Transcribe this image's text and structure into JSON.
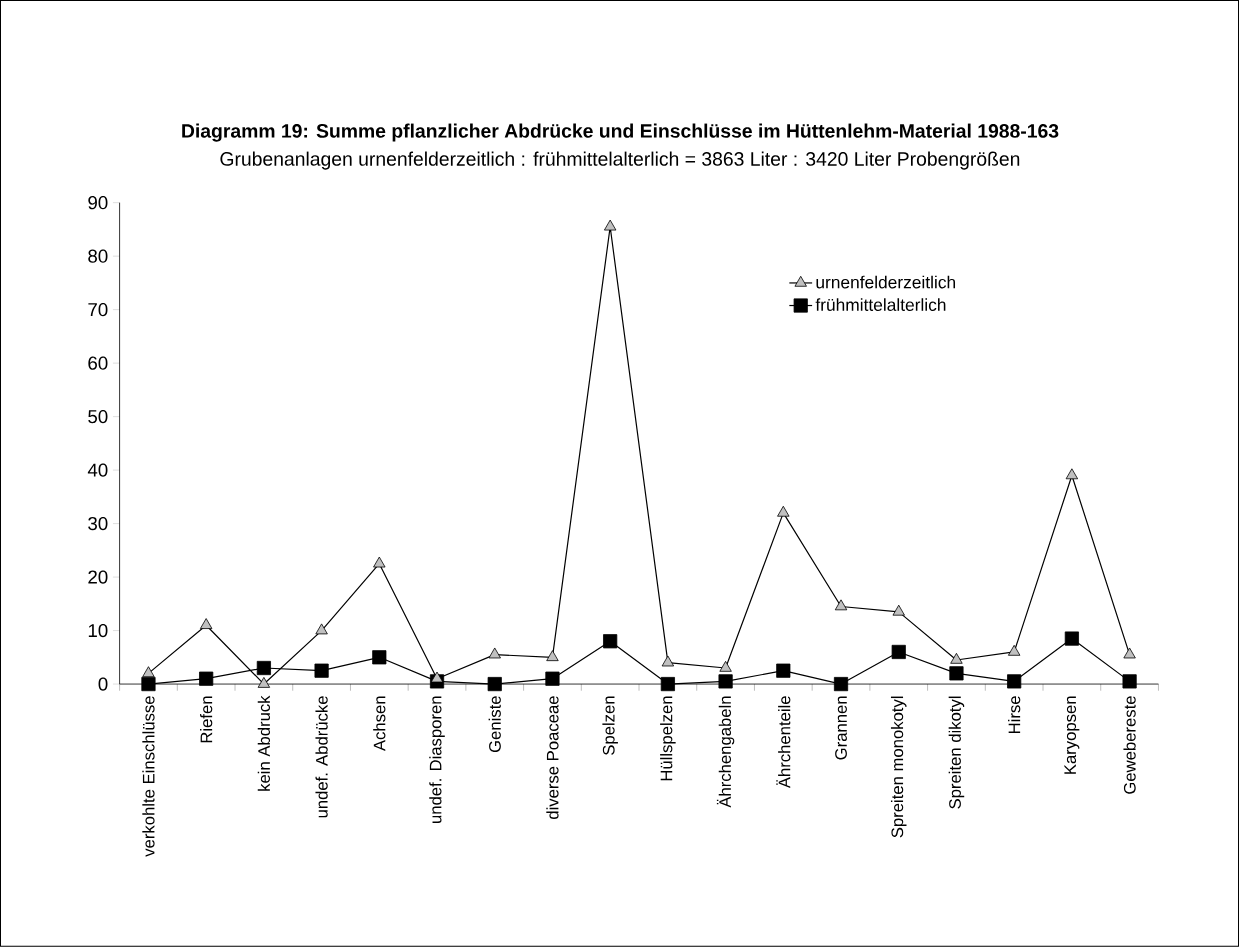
{
  "chart_data": {
    "type": "line",
    "title": "Diagramm 19: Summe pflanzlicher Abdrücke und Einschlüsse im Hüttenlehm-Material 1988-163",
    "subtitle": "Grubenanlagen urnenfelderzeitlich : frühmittelalterlich = 3863 Liter : 3420 Liter Probengrößen",
    "categories": [
      "verkohlte Einschlüsse",
      "Riefen",
      "kein Abdruck",
      "undef. Abdrücke",
      "Achsen",
      "undef. Diasporen",
      "Geniste",
      "diverse Poaceae",
      "Spelzen",
      "Hüllspelzen",
      "Ährchengabeln",
      "Ährchenteile",
      "Grannen",
      "Spreiten monokotyl",
      "Spreiten dikotyl",
      "Hirse",
      "Karyopsen",
      "Gewebereste"
    ],
    "series": [
      {
        "name": "urnenfelderzeitlich",
        "color": "#c0c0c0",
        "marker": "triangle",
        "values": [
          2,
          11,
          0,
          10,
          22.5,
          1,
          5.5,
          5,
          85.5,
          4,
          3,
          32,
          14.5,
          13.5,
          4.5,
          6,
          39,
          5.5
        ]
      },
      {
        "name": "frühmittelalterlich",
        "color": "#000000",
        "marker": "square",
        "values": [
          0,
          1,
          3,
          2.5,
          5,
          0.5,
          0,
          1,
          8,
          0,
          0.5,
          2.5,
          0,
          6,
          2,
          0.5,
          8.5,
          0.5
        ]
      }
    ],
    "ylim": [
      0,
      90
    ],
    "yticks": [
      0,
      10,
      20,
      30,
      40,
      50,
      60,
      70,
      80,
      90
    ],
    "legend": "top right"
  }
}
